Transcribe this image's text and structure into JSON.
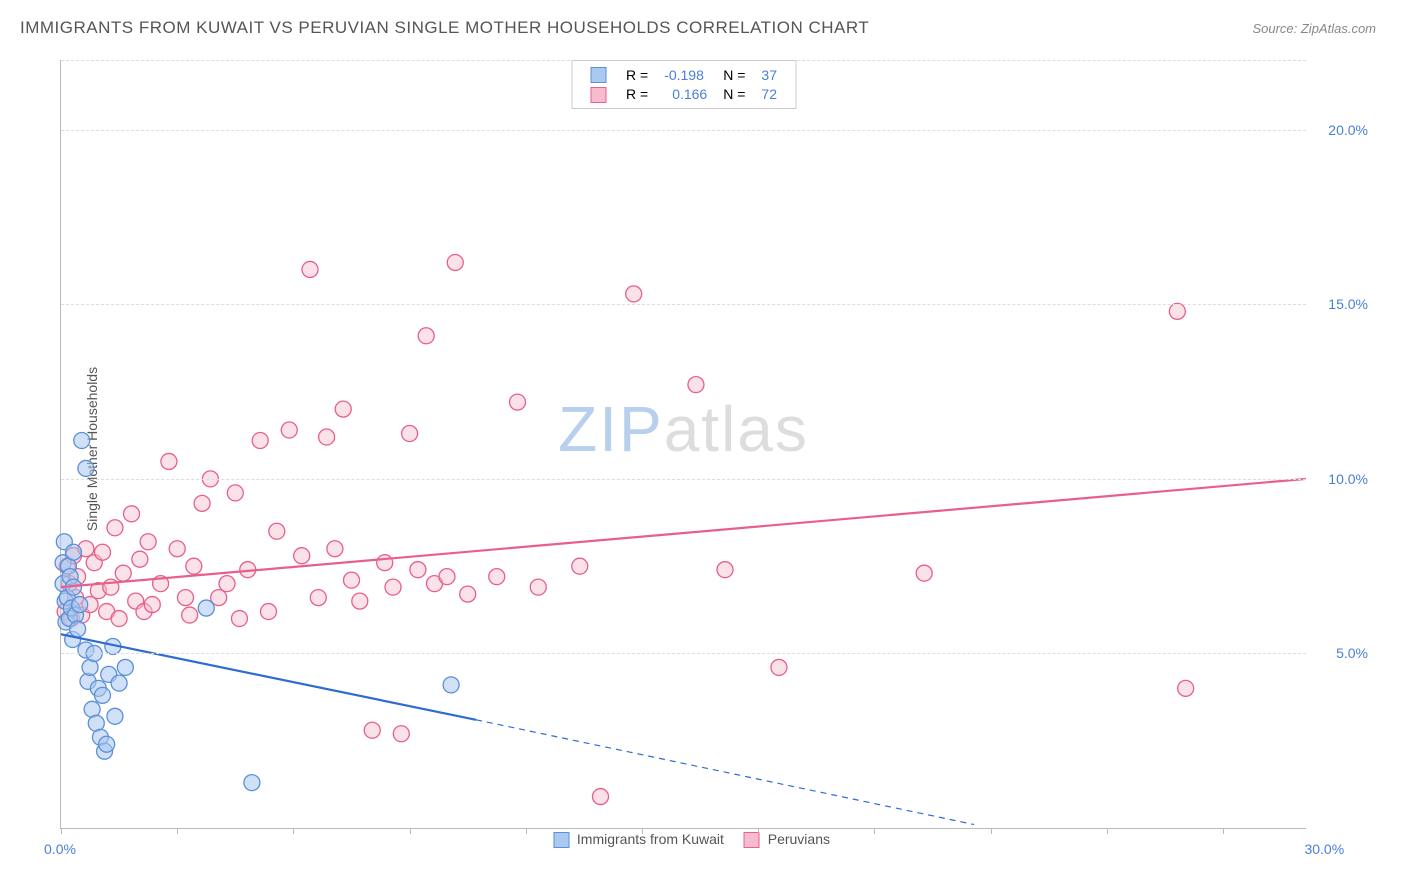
{
  "title": "IMMIGRANTS FROM KUWAIT VS PERUVIAN SINGLE MOTHER HOUSEHOLDS CORRELATION CHART",
  "source_label": "Source: ZipAtlas.com",
  "ylabel": "Single Mother Households",
  "watermark_a": "ZIP",
  "watermark_b": "atlas",
  "chart": {
    "type": "scatter",
    "background_color": "#ffffff",
    "grid_color": "#dddddd",
    "axis_color": "#bbbbbb",
    "xlim": [
      0,
      30
    ],
    "ylim": [
      0,
      22
    ],
    "grid_y": [
      5,
      10,
      15,
      20
    ],
    "ytick_labels": [
      "5.0%",
      "10.0%",
      "15.0%",
      "20.0%"
    ],
    "xtick_positions": [
      0,
      2.8,
      5.6,
      8.4,
      11.2,
      14.0,
      16.8,
      19.6,
      22.4,
      25.2,
      28.0
    ],
    "xtick_left_label": "0.0%",
    "xtick_right_label": "30.0%",
    "tick_label_color": "#4a7fd8",
    "marker_radius": 8,
    "marker_stroke_width": 1.3,
    "line_width": 2.2,
    "series": [
      {
        "key": "kuwait",
        "name": "Immigrants from Kuwait",
        "fill": "#a9c9f0",
        "stroke": "#5b8fd8",
        "line_color": "#2e6cd1",
        "fill_opacity": 0.55,
        "R_label": "R =",
        "R_value": "-0.198",
        "N_label": "N =",
        "N_value": "37",
        "trend": {
          "x1": 0,
          "y1": 5.55,
          "x2": 10.0,
          "y2": 3.1,
          "dash_x2": 22.0,
          "dash_y2": 0.1
        },
        "points": [
          [
            0.05,
            7.0
          ],
          [
            0.05,
            7.6
          ],
          [
            0.08,
            8.2
          ],
          [
            0.1,
            6.5
          ],
          [
            0.12,
            5.9
          ],
          [
            0.15,
            6.6
          ],
          [
            0.18,
            7.5
          ],
          [
            0.2,
            6.0
          ],
          [
            0.22,
            7.2
          ],
          [
            0.25,
            6.3
          ],
          [
            0.28,
            5.4
          ],
          [
            0.3,
            6.9
          ],
          [
            0.35,
            6.1
          ],
          [
            0.4,
            5.7
          ],
          [
            0.5,
            11.1
          ],
          [
            0.6,
            10.3
          ],
          [
            0.6,
            5.1
          ],
          [
            0.65,
            4.2
          ],
          [
            0.7,
            4.6
          ],
          [
            0.75,
            3.4
          ],
          [
            0.8,
            5.0
          ],
          [
            0.85,
            3.0
          ],
          [
            0.9,
            4.0
          ],
          [
            0.95,
            2.6
          ],
          [
            1.0,
            3.8
          ],
          [
            1.05,
            2.2
          ],
          [
            1.1,
            2.4
          ],
          [
            1.15,
            4.4
          ],
          [
            1.25,
            5.2
          ],
          [
            1.3,
            3.2
          ],
          [
            1.4,
            4.15
          ],
          [
            1.55,
            4.6
          ],
          [
            3.5,
            6.3
          ],
          [
            4.6,
            1.3
          ],
          [
            9.4,
            4.1
          ],
          [
            0.3,
            7.9
          ],
          [
            0.45,
            6.4
          ]
        ]
      },
      {
        "key": "peruvian",
        "name": "Peruvians",
        "fill": "#f6bccd",
        "stroke": "#e85f8b",
        "line_color": "#e85f8b",
        "fill_opacity": 0.45,
        "R_label": "R =",
        "R_value": "0.166",
        "N_label": "N =",
        "N_value": "72",
        "trend": {
          "x1": 0,
          "y1": 6.9,
          "x2": 30.0,
          "y2": 10.0,
          "dash_x2": null,
          "dash_y2": null
        },
        "points": [
          [
            0.1,
            6.2
          ],
          [
            0.15,
            7.5
          ],
          [
            0.2,
            7.0
          ],
          [
            0.25,
            6.0
          ],
          [
            0.3,
            7.8
          ],
          [
            0.35,
            6.6
          ],
          [
            0.4,
            7.2
          ],
          [
            0.5,
            6.1
          ],
          [
            0.6,
            8.0
          ],
          [
            0.7,
            6.4
          ],
          [
            0.8,
            7.6
          ],
          [
            0.9,
            6.8
          ],
          [
            1.0,
            7.9
          ],
          [
            1.1,
            6.2
          ],
          [
            1.2,
            6.9
          ],
          [
            1.3,
            8.6
          ],
          [
            1.4,
            6.0
          ],
          [
            1.5,
            7.3
          ],
          [
            1.7,
            9.0
          ],
          [
            1.8,
            6.5
          ],
          [
            1.9,
            7.7
          ],
          [
            2.0,
            6.2
          ],
          [
            2.1,
            8.2
          ],
          [
            2.2,
            6.4
          ],
          [
            2.4,
            7.0
          ],
          [
            2.6,
            10.5
          ],
          [
            2.8,
            8.0
          ],
          [
            3.0,
            6.6
          ],
          [
            3.2,
            7.5
          ],
          [
            3.4,
            9.3
          ],
          [
            3.6,
            10.0
          ],
          [
            3.8,
            6.6
          ],
          [
            4.0,
            7.0
          ],
          [
            4.2,
            9.6
          ],
          [
            4.5,
            7.4
          ],
          [
            4.8,
            11.1
          ],
          [
            5.0,
            6.2
          ],
          [
            5.2,
            8.5
          ],
          [
            5.5,
            11.4
          ],
          [
            5.8,
            7.8
          ],
          [
            6.0,
            16.0
          ],
          [
            6.2,
            6.6
          ],
          [
            6.4,
            11.2
          ],
          [
            6.6,
            8.0
          ],
          [
            6.8,
            12.0
          ],
          [
            7.0,
            7.1
          ],
          [
            7.2,
            6.5
          ],
          [
            7.5,
            2.8
          ],
          [
            7.8,
            7.6
          ],
          [
            8.0,
            6.9
          ],
          [
            8.2,
            2.7
          ],
          [
            8.4,
            11.3
          ],
          [
            8.6,
            7.4
          ],
          [
            8.8,
            14.1
          ],
          [
            9.0,
            7.0
          ],
          [
            9.3,
            7.2
          ],
          [
            9.5,
            16.2
          ],
          [
            9.8,
            6.7
          ],
          [
            10.5,
            7.2
          ],
          [
            11.0,
            12.2
          ],
          [
            11.5,
            6.9
          ],
          [
            12.5,
            7.5
          ],
          [
            13.0,
            0.9
          ],
          [
            13.8,
            15.3
          ],
          [
            15.3,
            12.7
          ],
          [
            16.0,
            7.4
          ],
          [
            17.3,
            4.6
          ],
          [
            20.8,
            7.3
          ],
          [
            26.9,
            14.8
          ],
          [
            27.1,
            4.0
          ],
          [
            4.3,
            6.0
          ],
          [
            3.1,
            6.1
          ]
        ]
      }
    ]
  },
  "legend_bottom": {
    "items": [
      {
        "swatch_fill": "#a9c9f0",
        "swatch_stroke": "#5b8fd8",
        "label": "Immigrants from Kuwait"
      },
      {
        "swatch_fill": "#f6bccd",
        "swatch_stroke": "#e85f8b",
        "label": "Peruvians"
      }
    ]
  }
}
